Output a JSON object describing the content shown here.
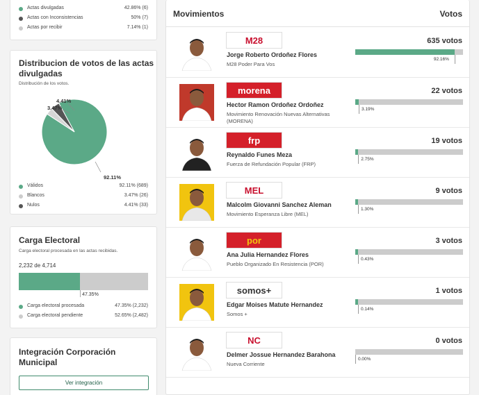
{
  "top_legend": [
    {
      "label": "Actas divulgadas",
      "value": "42.86% (6)",
      "color": "#5ba987"
    },
    {
      "label": "Actas con Inconsistencias",
      "value": "50% (7)",
      "color": "#555555"
    },
    {
      "label": "Actas por recibir",
      "value": "7.14% (1)",
      "color": "#cccccc"
    }
  ],
  "distribution": {
    "title": "Distribucion de votos de las actas divulgadas",
    "subtitle": "Distribución de los votos.",
    "legend": [
      {
        "label": "Válidos",
        "value": "92.11% (689)",
        "color": "#5ba987"
      },
      {
        "label": "Blancos",
        "value": "3.47% (26)",
        "color": "#cccccc"
      },
      {
        "label": "Nulos",
        "value": "4.41% (33)",
        "color": "#555555"
      }
    ],
    "slice_labels": {
      "validos": "92.11%",
      "blancos": "3.47%",
      "nulos": "4.41%"
    }
  },
  "chart_data": {
    "type": "pie",
    "labels": [
      "Válidos",
      "Blancos",
      "Nulos"
    ],
    "values": [
      92.11,
      3.47,
      4.41
    ],
    "counts": [
      689,
      26,
      33
    ],
    "colors": [
      "#5ba987",
      "#d6d6d6",
      "#555555"
    ]
  },
  "carga": {
    "title": "Carga Electoral",
    "subtitle": "Carga electoral procesada en las actas recibidas.",
    "counter": "2,232 de 4,714",
    "progress_fraction": 0.4735,
    "progress_label": "47.35%",
    "legend": [
      {
        "label": "Carga electoral procesada",
        "value": "47.35% (2,232)",
        "color": "#5ba987"
      },
      {
        "label": "Carga electoral pendiente",
        "value": "52.65% (2,482)",
        "color": "#cccccc"
      }
    ]
  },
  "integracion": {
    "title": "Integración Corporación Municipal",
    "button": "Ver integración"
  },
  "movimientos": {
    "header_left": "Movimientos",
    "header_right": "Votos",
    "candidates": [
      {
        "name": "Jorge Roberto Ordoñez Flores",
        "party": "M28 Poder Para Vos",
        "logo": "M28",
        "logo_color": "#c8102e",
        "logo_bg": "#ffffff",
        "votes": "635 votos",
        "fraction": 0.9216,
        "pct": "92.16%",
        "shirt": "#ffffff",
        "bg": "#ffffff"
      },
      {
        "name": "Hector Ramon Ordoñez Ordoñez",
        "party": "Movimiento Renovación Nuevas Alternativas (MORENA)",
        "logo": "morena",
        "logo_color": "#ffffff",
        "logo_bg": "#d4202a",
        "votes": "22 votos",
        "fraction": 0.0319,
        "pct": "3.19%",
        "shirt": "#ffffff",
        "bg": "#c0392b"
      },
      {
        "name": "Reynaldo Funes Meza",
        "party": "Fuerza de Refundación Popular (FRP)",
        "logo": "frp",
        "logo_color": "#ffffff",
        "logo_bg": "#d4202a",
        "votes": "19 votos",
        "fraction": 0.0275,
        "pct": "2.75%",
        "shirt": "#222222",
        "bg": "#ffffff"
      },
      {
        "name": "Malcolm Giovanni Sanchez Aleman",
        "party": "Movimiento Esperanza Libre (MEL)",
        "logo": "MEL",
        "logo_color": "#c8102e",
        "logo_bg": "#ffffff",
        "votes": "9 votos",
        "fraction": 0.013,
        "pct": "1.30%",
        "shirt": "#e8e8e8",
        "bg": "#f1c40f"
      },
      {
        "name": "Ana Julia Hernandez Flores",
        "party": "Pueblo Organizado En Resistencia (POR)",
        "logo": "por",
        "logo_color": "#f1c40f",
        "logo_bg": "#d4202a",
        "votes": "3 votos",
        "fraction": 0.0043,
        "pct": "0.43%",
        "shirt": "#ffffff",
        "bg": "#ffffff"
      },
      {
        "name": "Edgar Moises Matute Hernandez",
        "party": "Somos +",
        "logo": "somos+",
        "logo_color": "#333333",
        "logo_bg": "#ffffff",
        "votes": "1 votos",
        "fraction": 0.0014,
        "pct": "0.14%",
        "shirt": "#ffffff",
        "bg": "#f1c40f"
      },
      {
        "name": "Delmer Jossue Hernandez Barahona",
        "party": "Nueva Corriente",
        "logo": "NC",
        "logo_color": "#c8102e",
        "logo_bg": "#ffffff",
        "votes": "0 votos",
        "fraction": 0.0,
        "pct": "0.00%",
        "shirt": "#ffffff",
        "bg": "#ffffff"
      }
    ]
  }
}
